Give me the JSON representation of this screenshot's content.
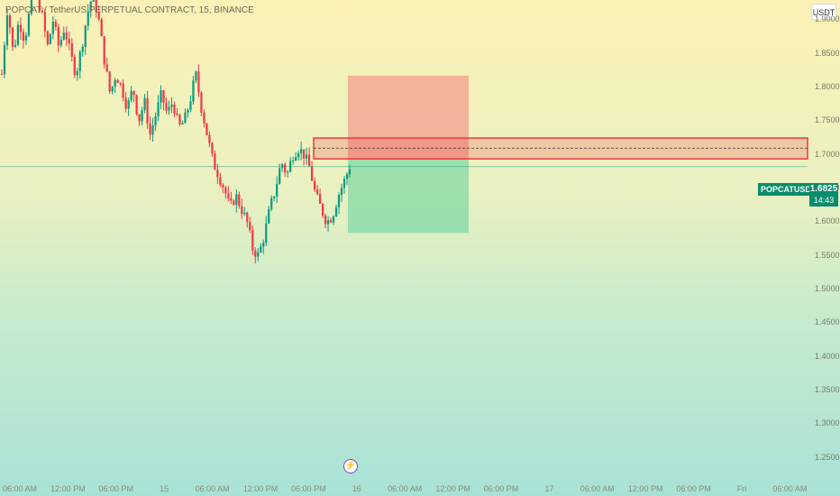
{
  "header": {
    "title": "POPCAT / TetherUS PERPETUAL CONTRACT, 15, BINANCE",
    "currency_badge": "USDT"
  },
  "price_tag": {
    "symbol": "POPCATUSDT.P",
    "price": "1.6825",
    "countdown": "14:43"
  },
  "colors": {
    "up": "#089981",
    "down": "#f23645",
    "tag": "#0b8c6b",
    "stop_zone": "#f28b82",
    "target_zone": "#5fcf9d"
  },
  "icons": {
    "event": "lightning-icon"
  },
  "chart_data": {
    "type": "candlestick",
    "title": "POPCAT / TetherUS PERPETUAL CONTRACT, 15, BINANCE",
    "ylim": [
      1.22,
      1.93
    ],
    "yticks": [
      "1.9000",
      "1.8500",
      "1.8000",
      "1.7500",
      "1.7000",
      "1.6500",
      "1.6000",
      "1.5500",
      "1.5000",
      "1.4500",
      "1.4000",
      "1.3500",
      "1.3000",
      "1.2500"
    ],
    "xticks": [
      "06:00 AM",
      "12:00 PM",
      "06:00 PM",
      "15",
      "06:00 AM",
      "12:00 PM",
      "06:00 PM",
      "16",
      "06:00 AM",
      "12:00 PM",
      "06:00 PM",
      "17",
      "06:00 AM",
      "12:00 PM",
      "06:00 PM",
      "Fri",
      "06:00 AM"
    ],
    "series_path": [
      1.82,
      1.92,
      1.85,
      1.9,
      1.87,
      1.92,
      1.94,
      1.91,
      1.86,
      1.9,
      1.86,
      1.89,
      1.85,
      1.82,
      1.86,
      1.91,
      1.94,
      1.9,
      1.84,
      1.79,
      1.82,
      1.8,
      1.77,
      1.8,
      1.75,
      1.78,
      1.73,
      1.76,
      1.79,
      1.76,
      1.78,
      1.74,
      1.75,
      1.78,
      1.82,
      1.77,
      1.73,
      1.69,
      1.67,
      1.65,
      1.62,
      1.64,
      1.62,
      1.6,
      1.56,
      1.55,
      1.58,
      1.62,
      1.65,
      1.69,
      1.67,
      1.7,
      1.71,
      1.7,
      1.68,
      1.64,
      1.62,
      1.6,
      1.61,
      1.64,
      1.66,
      1.6825
    ],
    "annotations": {
      "resistance_box": [
        1.694,
        1.725
      ],
      "resistance_mid": 1.71,
      "current_price": 1.6825,
      "position_entry": 1.694,
      "position_stop": 1.8175,
      "position_target": 1.584
    }
  }
}
